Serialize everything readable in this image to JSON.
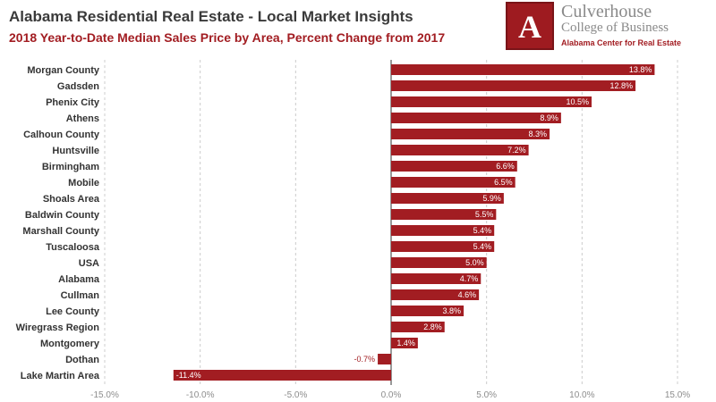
{
  "header": {
    "title": "Alabama Residential Real Estate - Local Market Insights",
    "subtitle": "2018 Year-to-Date Median Sales Price by Area, Percent Change from 2017"
  },
  "logo": {
    "name": "Culverhouse",
    "college": "College of Business",
    "center": "Alabama Center for Real Estate",
    "seal_letter": "A",
    "seal_color": "#9e1b20"
  },
  "colors": {
    "bar": "#a21d22",
    "grid": "#cccccc",
    "zero_line": "#333333",
    "label_inside": "#ffffff",
    "label_outside": "#a21d22"
  },
  "chart_data": {
    "type": "bar",
    "orientation": "horizontal",
    "categories": [
      "Morgan County",
      "Gadsden",
      "Phenix City",
      "Athens",
      "Calhoun County",
      "Huntsville",
      "Birmingham",
      "Mobile",
      "Shoals Area",
      "Baldwin County",
      "Marshall County",
      "Tuscaloosa",
      "USA",
      "Alabama",
      "Cullman",
      "Lee County",
      "Wiregrass Region",
      "Montgomery",
      "Dothan",
      "Lake Martin Area"
    ],
    "values": [
      13.8,
      12.8,
      10.5,
      8.9,
      8.3,
      7.2,
      6.6,
      6.5,
      5.9,
      5.5,
      5.4,
      5.4,
      5.0,
      4.7,
      4.6,
      3.8,
      2.8,
      1.4,
      -0.7,
      -11.4
    ],
    "value_labels": [
      "13.8%",
      "12.8%",
      "10.5%",
      "8.9%",
      "8.3%",
      "7.2%",
      "6.6%",
      "6.5%",
      "5.9%",
      "5.5%",
      "5.4%",
      "5.4%",
      "5.0%",
      "4.7%",
      "4.6%",
      "3.8%",
      "2.8%",
      "1.4%",
      "-0.7%",
      "-11.4%"
    ],
    "xlim": [
      -15,
      15
    ],
    "xticks": [
      -15,
      -10,
      -5,
      0,
      5,
      10,
      15
    ],
    "xtick_labels": [
      "-15.0%",
      "-10.0%",
      "-5.0%",
      "0.0%",
      "5.0%",
      "10.0%",
      "15.0%"
    ],
    "grid": "vertical-dashed",
    "legend": "none"
  }
}
